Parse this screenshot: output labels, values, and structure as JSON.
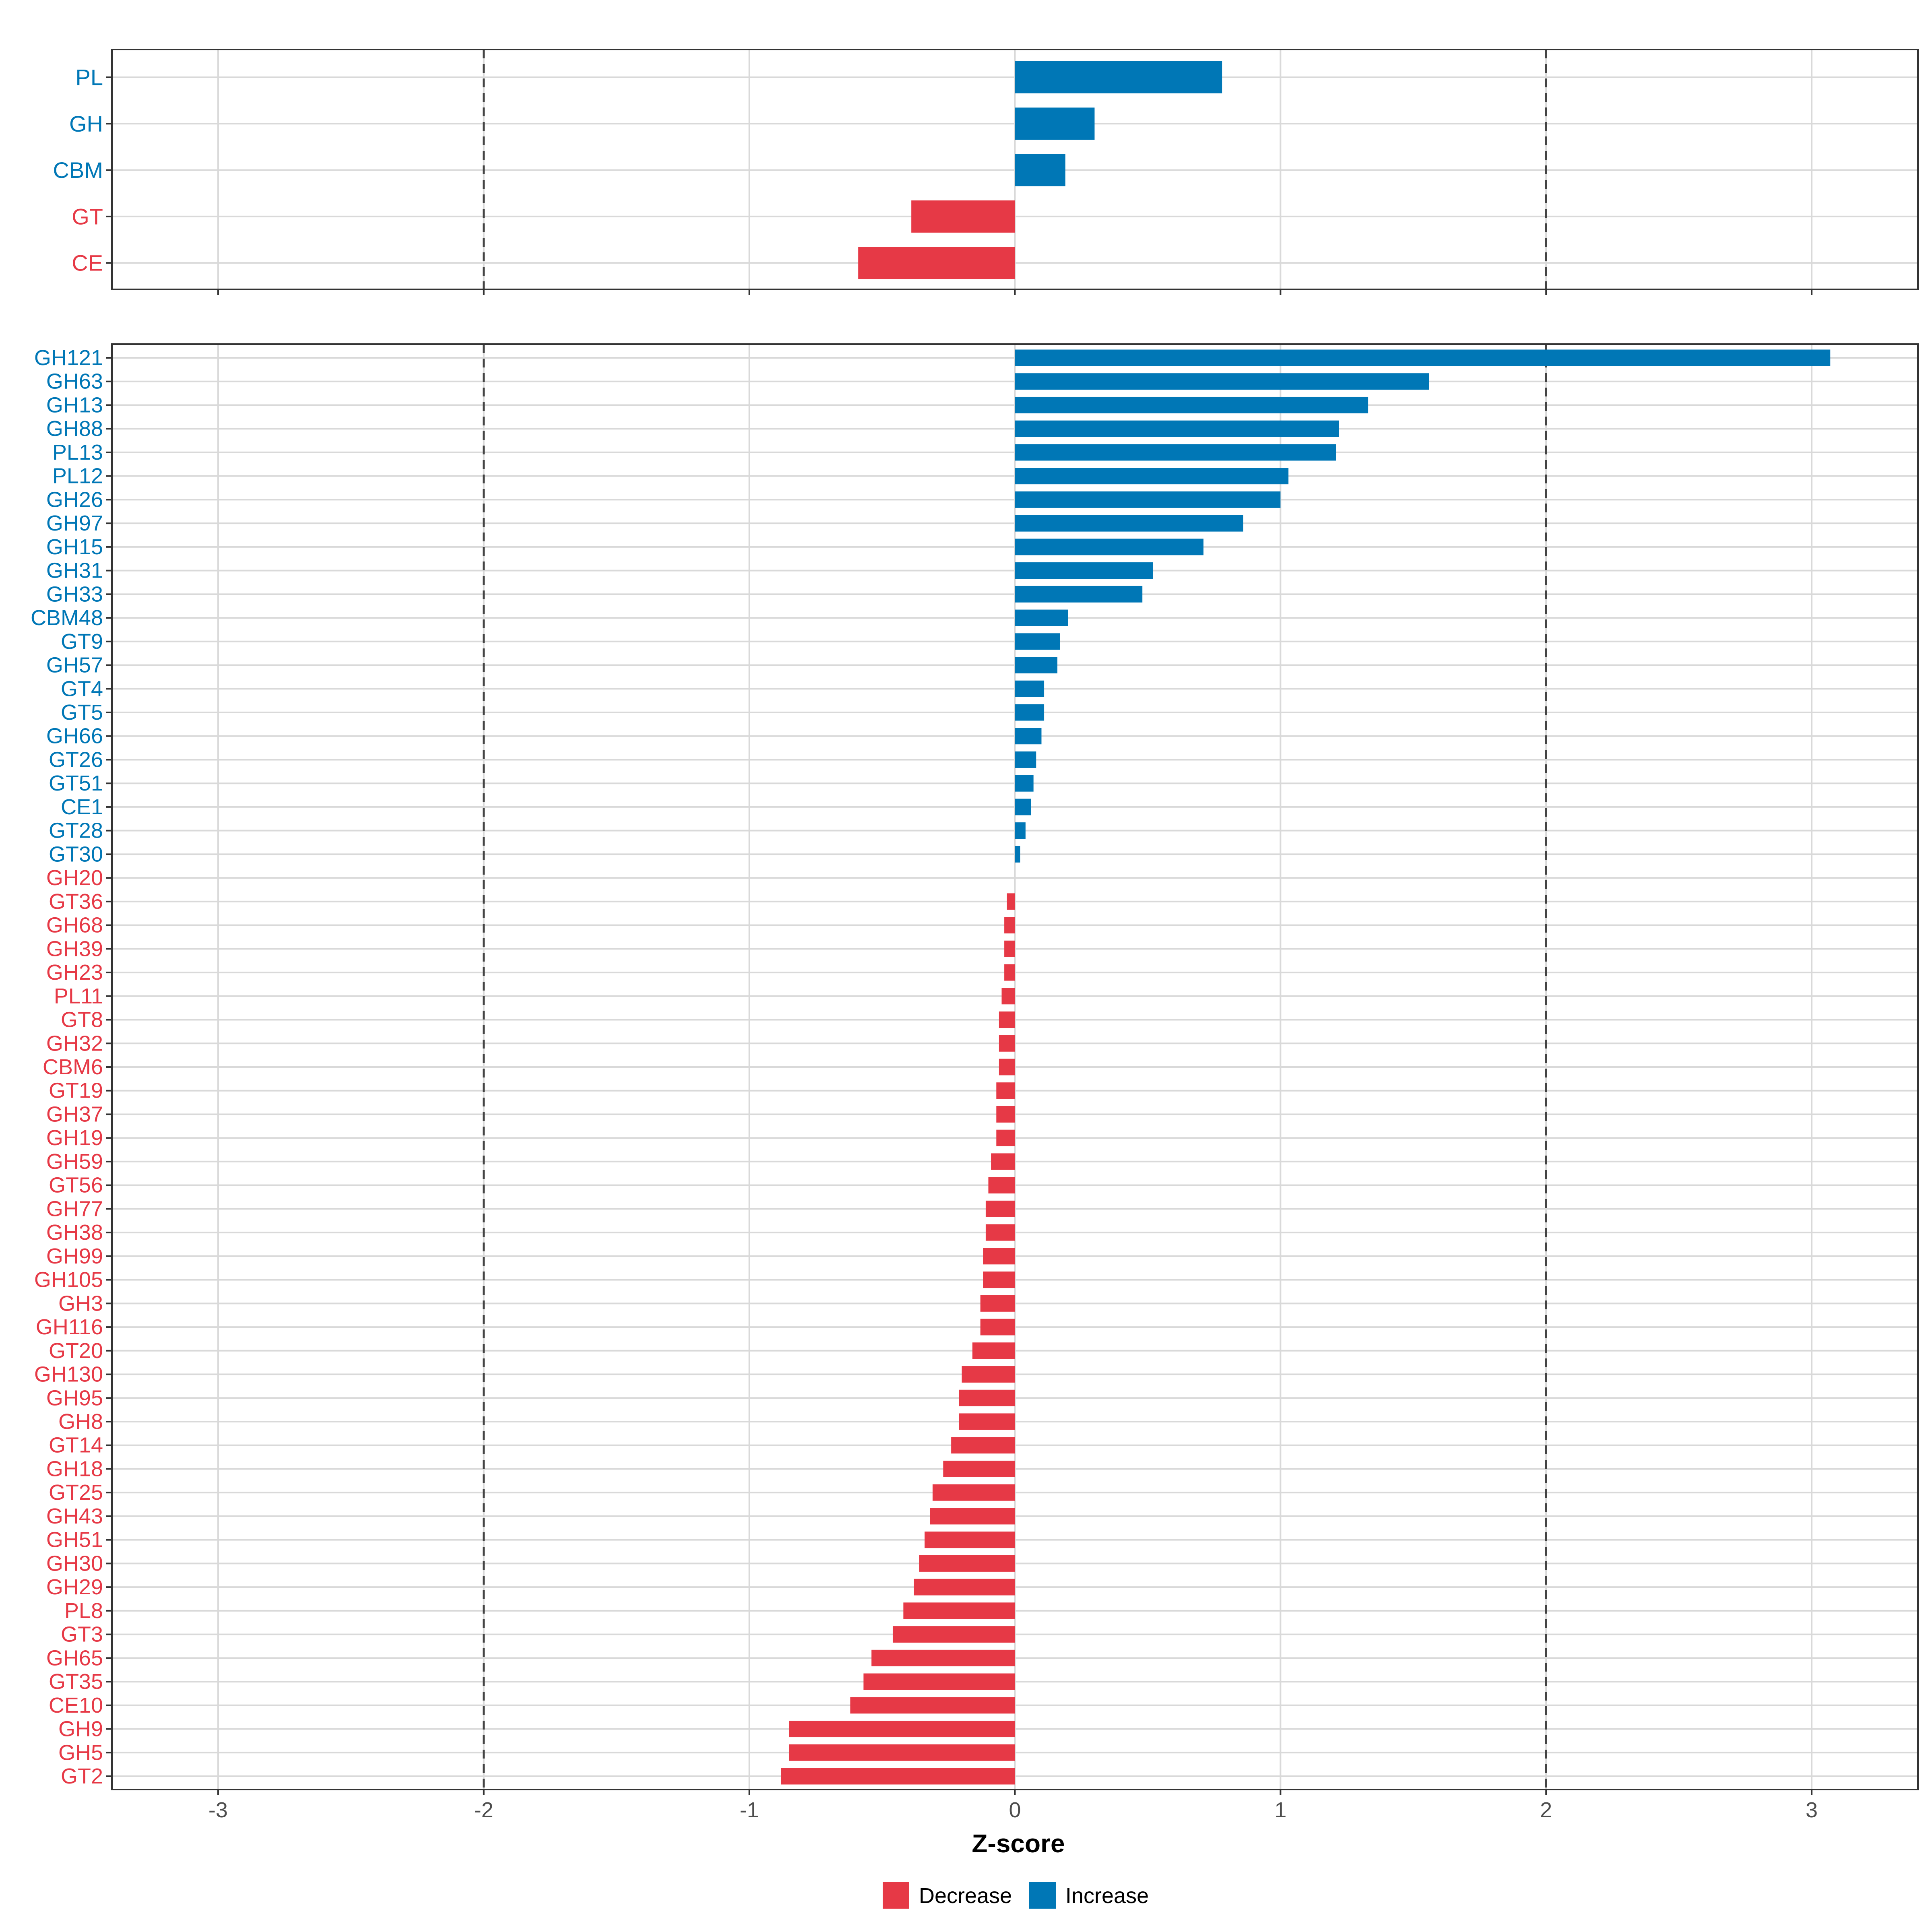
{
  "colors": {
    "decrease": "#E63946",
    "increase": "#0077B6",
    "grid": "#D9D9D9",
    "panel_border": "#333333",
    "threshold_line": "#444444",
    "tick_text": "#4D4D4D"
  },
  "chart_data": [
    {
      "type": "bar",
      "orientation": "horizontal",
      "panel": "top",
      "categories": [
        "PL",
        "GH",
        "CBM",
        "GT",
        "CE"
      ],
      "values": [
        0.78,
        0.3,
        0.19,
        -0.39,
        -0.59
      ],
      "xlim": [
        -3.4,
        3.4
      ],
      "xticks": [
        -3,
        -2,
        -1,
        0,
        1,
        2,
        3
      ],
      "threshold_lines": [
        -2,
        2
      ],
      "grid": true
    },
    {
      "type": "bar",
      "orientation": "horizontal",
      "panel": "bottom",
      "categories": [
        "GH121",
        "GH63",
        "GH13",
        "GH88",
        "PL13",
        "PL12",
        "GH26",
        "GH97",
        "GH15",
        "GH31",
        "GH33",
        "CBM48",
        "GT9",
        "GH57",
        "GT4",
        "GT5",
        "GH66",
        "GT26",
        "GT51",
        "CE1",
        "GT28",
        "GT30",
        "GH20",
        "GT36",
        "GH68",
        "GH39",
        "GH23",
        "PL11",
        "GT8",
        "GH32",
        "CBM6",
        "GT19",
        "GH37",
        "GH19",
        "GH59",
        "GT56",
        "GH77",
        "GH38",
        "GH99",
        "GH105",
        "GH3",
        "GH116",
        "GT20",
        "GH130",
        "GH95",
        "GH8",
        "GT14",
        "GH18",
        "GT25",
        "GH43",
        "GH51",
        "GH30",
        "GH29",
        "PL8",
        "GT3",
        "GH65",
        "GT35",
        "CE10",
        "GH9",
        "GH5",
        "GT2"
      ],
      "values": [
        3.07,
        1.56,
        1.33,
        1.22,
        1.21,
        1.03,
        1.0,
        0.86,
        0.71,
        0.52,
        0.48,
        0.2,
        0.17,
        0.16,
        0.11,
        0.11,
        0.1,
        0.08,
        0.07,
        0.06,
        0.04,
        0.02,
        0.0,
        -0.03,
        -0.04,
        -0.04,
        -0.04,
        -0.05,
        -0.06,
        -0.06,
        -0.06,
        -0.07,
        -0.07,
        -0.07,
        -0.09,
        -0.1,
        -0.11,
        -0.11,
        -0.12,
        -0.12,
        -0.13,
        -0.13,
        -0.16,
        -0.2,
        -0.21,
        -0.21,
        -0.24,
        -0.27,
        -0.31,
        -0.32,
        -0.34,
        -0.36,
        -0.38,
        -0.42,
        -0.46,
        -0.54,
        -0.57,
        -0.62,
        -0.85,
        -0.85,
        -0.88
      ],
      "xlim": [
        -3.4,
        3.4
      ],
      "xticks": [
        -3,
        -2,
        -1,
        0,
        1,
        2,
        3
      ],
      "threshold_lines": [
        -2,
        2
      ],
      "grid": true
    }
  ],
  "xlabel": "Z-score",
  "legend": {
    "position": "bottom",
    "items": [
      {
        "label": "Decrease",
        "color_key": "decrease"
      },
      {
        "label": "Increase",
        "color_key": "increase"
      }
    ]
  }
}
